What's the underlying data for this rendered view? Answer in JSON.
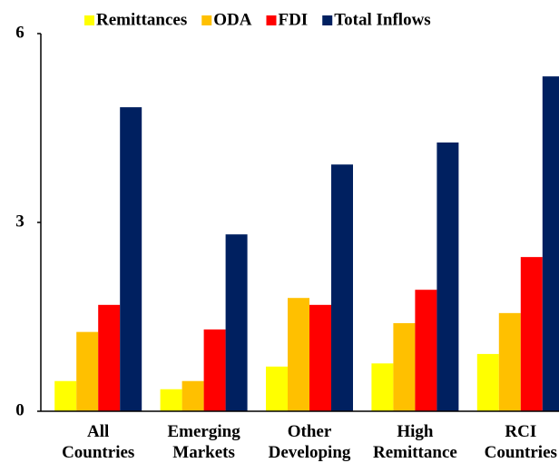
{
  "chart_data": {
    "type": "bar",
    "categories": [
      "All Countries",
      "Emerging Markets",
      "Other Developing",
      "High Remittance",
      "RCI Countries"
    ],
    "series": [
      {
        "name": "Remittances",
        "color": "#ffff00",
        "values": [
          0.48,
          0.35,
          0.71,
          0.76,
          0.91
        ]
      },
      {
        "name": "ODA",
        "color": "#ffc000",
        "values": [
          1.26,
          0.48,
          1.8,
          1.4,
          1.56
        ]
      },
      {
        "name": "FDI",
        "color": "#ff0000",
        "values": [
          1.69,
          1.3,
          1.69,
          1.93,
          2.45
        ]
      },
      {
        "name": "Total Inflows",
        "color": "#002060",
        "values": [
          4.83,
          2.81,
          3.92,
          4.27,
          5.32
        ]
      }
    ],
    "ylim": [
      0,
      6
    ],
    "yticks": [
      0,
      3,
      6
    ],
    "grid": false,
    "legend": "top"
  }
}
